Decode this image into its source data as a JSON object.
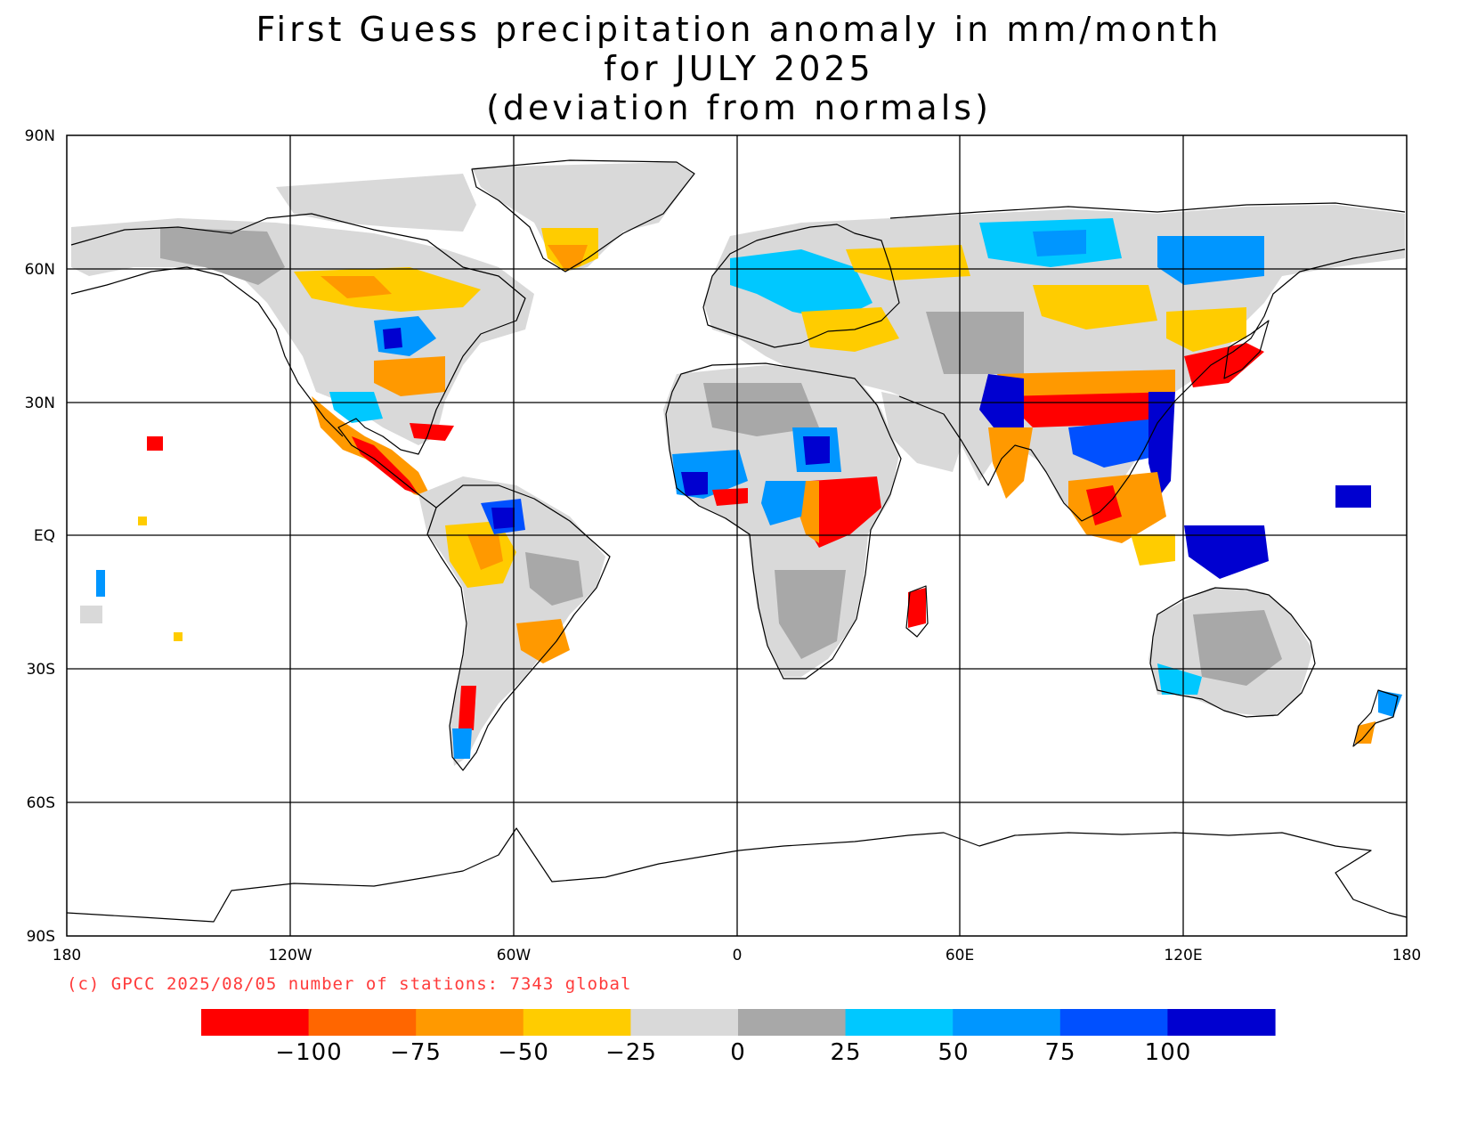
{
  "title": {
    "line1": "First Guess precipitation anomaly in mm/month",
    "line2": "for JULY 2025",
    "line3": "(deviation from normals)"
  },
  "map": {
    "lat_labels": [
      "90N",
      "60N",
      "30N",
      "EQ",
      "30S",
      "60S",
      "90S"
    ],
    "lon_labels": [
      "180",
      "120W",
      "60W",
      "0",
      "60E",
      "120E",
      "180"
    ],
    "credit": "(c) GPCC 2025/08/05 number of stations: 7343 global"
  },
  "colorbar": {
    "colors": [
      "#ff0000",
      "#ff6600",
      "#ff9900",
      "#ffcc00",
      "#d9d9d9",
      "#a8a8a8",
      "#00c8ff",
      "#0096ff",
      "#0050ff",
      "#0000d0"
    ],
    "labels": [
      "-100",
      "-75",
      "-50",
      "-25",
      "0",
      "25",
      "50",
      "75",
      "100"
    ]
  }
}
